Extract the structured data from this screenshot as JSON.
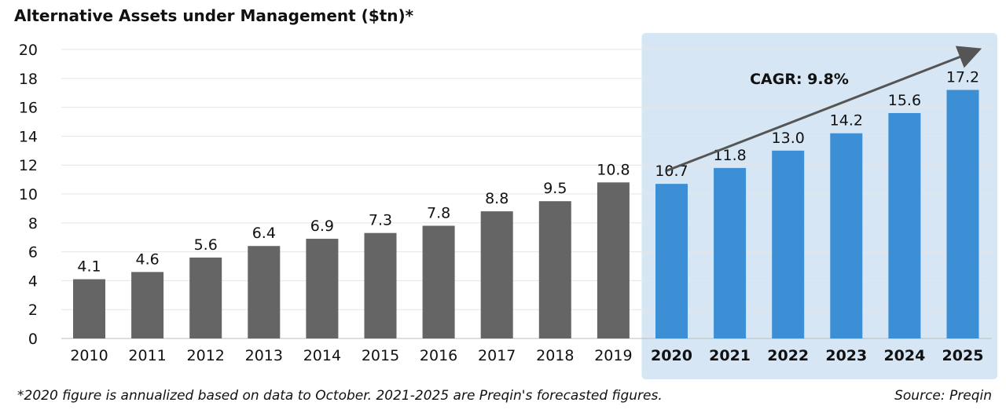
{
  "chart_data": {
    "type": "bar",
    "title": "Alternative Assets under Management ($tn)*",
    "categories": [
      "2010",
      "2011",
      "2012",
      "2013",
      "2014",
      "2015",
      "2016",
      "2017",
      "2018",
      "2019",
      "2020",
      "2021",
      "2022",
      "2023",
      "2024",
      "2025"
    ],
    "values": [
      4.1,
      4.6,
      5.6,
      6.4,
      6.9,
      7.3,
      7.8,
      8.8,
      9.5,
      10.8,
      10.7,
      11.8,
      13.0,
      14.2,
      15.6,
      17.2
    ],
    "value_labels": [
      "4.1",
      "4.6",
      "5.6",
      "6.4",
      "6.9",
      "7.3",
      "7.8",
      "8.8",
      "9.5",
      "10.8",
      "10.7",
      "11.8",
      "13.0",
      "14.2",
      "15.6",
      "17.2"
    ],
    "forecast_start_index": 10,
    "ylim": [
      0,
      20
    ],
    "yticks": [
      0,
      2,
      4,
      6,
      8,
      10,
      12,
      14,
      16,
      18,
      20
    ],
    "xlabel": "",
    "ylabel": "",
    "grid": true,
    "annotation": "CAGR: 9.8%",
    "colors": {
      "historical": "#666566",
      "forecast": "#3c8fd4",
      "highlight_bg": "#d6e6f5",
      "arrow": "#555555"
    }
  },
  "footnote": "*2020 figure is annualized based on data to October. 2021-2025 are Preqin's forecasted figures.",
  "source": "Source: Preqin"
}
